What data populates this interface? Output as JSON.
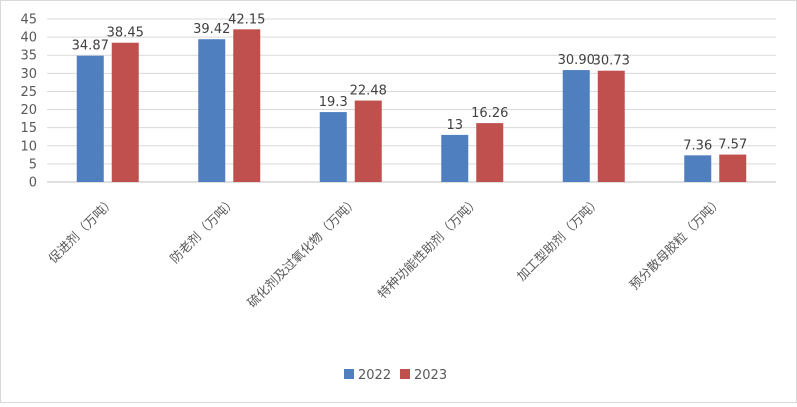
{
  "chart_data": {
    "type": "bar",
    "title": "",
    "xlabel": "",
    "ylabel": "",
    "ylim": [
      0,
      45
    ],
    "yticks": [
      0,
      5,
      10,
      15,
      20,
      25,
      30,
      35,
      40,
      45
    ],
    "grid": true,
    "legend_position": "bottom",
    "categories": [
      "促进剂（万吨）",
      "防老剂（万吨）",
      "硫化剂及过氧化物（万吨）",
      "特种功能性助剂（万吨）",
      "加工型助剂（万吨）",
      "预分散母胶粒（万吨）"
    ],
    "series": [
      {
        "name": "2022",
        "color": "#4f7fbf",
        "values": [
          34.87,
          39.42,
          19.3,
          13,
          30.9,
          7.36
        ],
        "labels": [
          "34.87",
          "39.42",
          "19.3",
          "13",
          "30.90",
          "7.36"
        ]
      },
      {
        "name": "2023",
        "color": "#c0504d",
        "values": [
          38.45,
          42.15,
          22.48,
          16.26,
          30.73,
          7.57
        ],
        "labels": [
          "38.45",
          "42.15",
          "22.48",
          "16.26",
          "30.73",
          "7.57"
        ]
      }
    ]
  }
}
